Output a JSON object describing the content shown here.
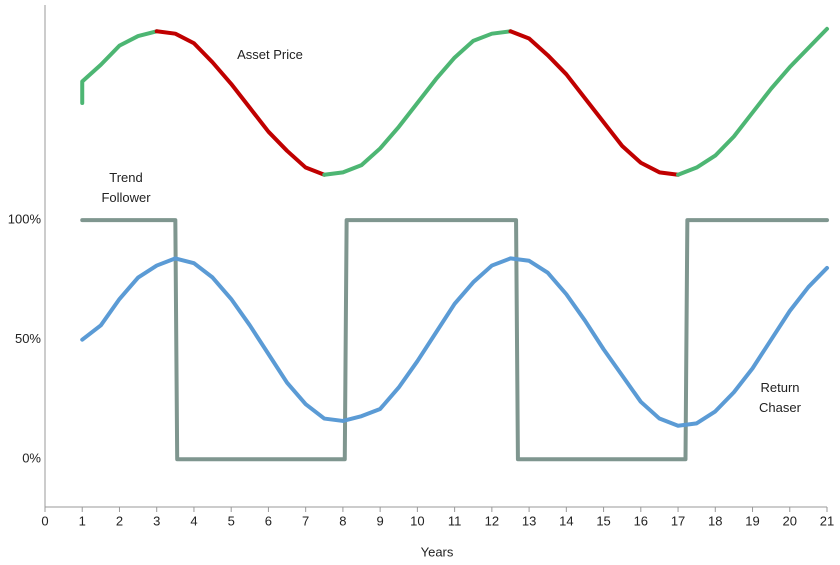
{
  "chart_data": {
    "type": "line",
    "x_label": "Years",
    "xlim": [
      0,
      21
    ],
    "xticks": [
      0,
      1,
      2,
      3,
      4,
      5,
      6,
      7,
      8,
      9,
      10,
      11,
      12,
      13,
      14,
      15,
      16,
      17,
      18,
      19,
      20,
      21
    ],
    "ylim": [
      -20,
      190
    ],
    "yticks": [
      {
        "value": 0,
        "label": "0%"
      },
      {
        "value": 50,
        "label": "50%"
      },
      {
        "value": 100,
        "label": "100%"
      }
    ],
    "grid": false,
    "series": [
      {
        "name": "Asset Price",
        "rise_color": "#4db673",
        "fall_color": "#c00000",
        "x": [
          1,
          1,
          1.5,
          2,
          2.5,
          3,
          3.5,
          4,
          4.5,
          5,
          5.5,
          6,
          6.5,
          7,
          7.5,
          8,
          8.5,
          9,
          9.5,
          10,
          10.5,
          11,
          11.5,
          12,
          12.5,
          13,
          13.5,
          14,
          14.5,
          15,
          15.5,
          16,
          16.5,
          17,
          17.5,
          18,
          18.5,
          19,
          19.5,
          20,
          20.5,
          21
        ],
        "values": [
          149,
          158,
          165,
          173,
          177,
          179,
          178,
          174,
          166,
          157,
          147,
          137,
          129,
          122,
          119,
          120,
          123,
          130,
          139,
          149,
          159,
          168,
          175,
          178,
          179,
          176,
          169,
          161,
          151,
          141,
          131,
          124,
          120,
          119,
          122,
          127,
          135,
          145,
          155,
          164,
          172,
          180
        ]
      },
      {
        "name": "Trend Follower",
        "color": "#7f968f",
        "x": [
          1,
          3.5,
          3.55,
          8.05,
          8.1,
          12.65,
          12.7,
          17.2,
          17.25,
          21
        ],
        "values": [
          100,
          100,
          0,
          0,
          100,
          100,
          0,
          0,
          100,
          100
        ]
      },
      {
        "name": "Return Chaser",
        "color": "#5b9bd5",
        "x": [
          1,
          1.5,
          2,
          2.5,
          3,
          3.5,
          4,
          4.5,
          5,
          5.5,
          6,
          6.5,
          7,
          7.5,
          8,
          8.5,
          9,
          9.5,
          10,
          10.5,
          11,
          11.5,
          12,
          12.5,
          13,
          13.5,
          14,
          14.5,
          15,
          15.5,
          16,
          16.5,
          17,
          17.5,
          18,
          18.5,
          19,
          19.5,
          20,
          20.5,
          21
        ],
        "values": [
          50,
          56,
          67,
          76,
          81,
          84,
          82,
          76,
          67,
          56,
          44,
          32,
          23,
          17,
          16,
          18,
          21,
          30,
          41,
          53,
          65,
          74,
          81,
          84,
          83,
          78,
          69,
          58,
          46,
          35,
          24,
          17,
          14,
          15,
          20,
          28,
          38,
          50,
          62,
          72,
          80
        ]
      }
    ]
  }
}
